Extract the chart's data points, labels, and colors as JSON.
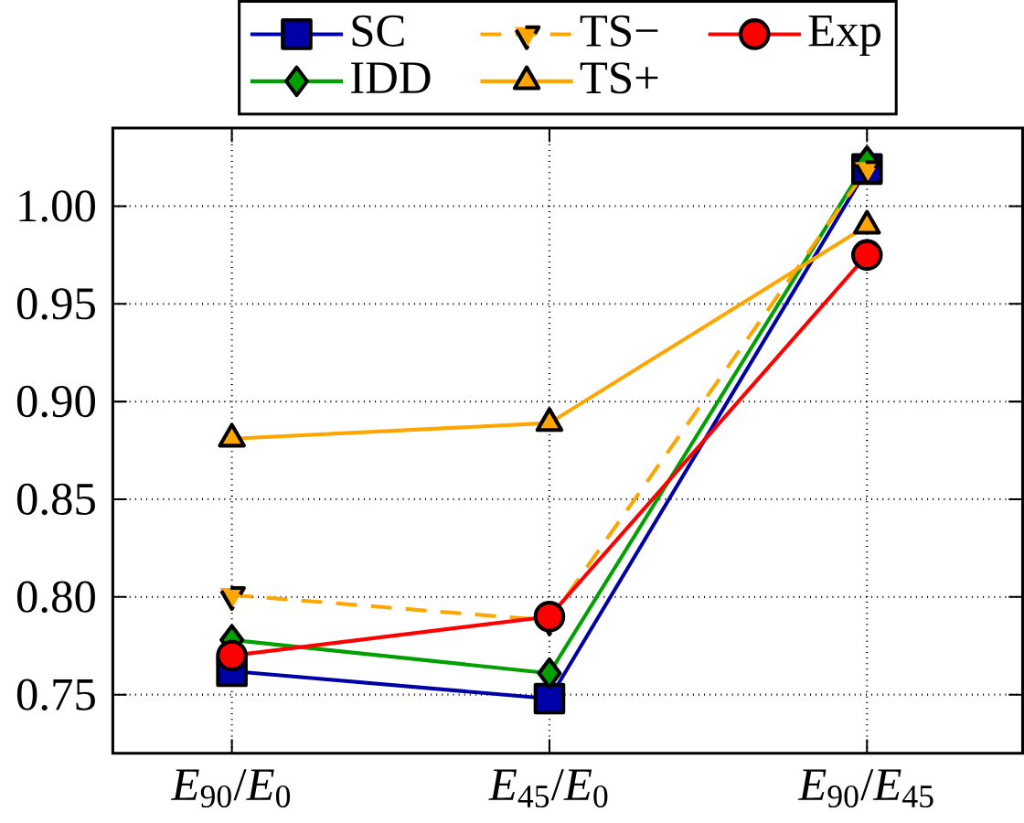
{
  "chart_data": {
    "type": "line",
    "categories": [
      "*E*$_{90}$/*E*$_{0}$",
      "*E*$_{45}$/*E*$_{0}$",
      "*E*$_{90}$/*E*$_{45}$"
    ],
    "series": [
      {
        "name": "SC",
        "color": "#0000a8",
        "marker": "square",
        "values": [
          0.762,
          0.748,
          1.019
        ]
      },
      {
        "name": "IDD",
        "color": "#00a000",
        "marker": "diamond",
        "values": [
          0.778,
          0.761,
          1.023
        ]
      },
      {
        "name": "TS−",
        "color": "#ffa500",
        "marker": "triangle_down",
        "line_style": "dashed",
        "values": [
          0.801,
          0.788,
          1.019
        ]
      },
      {
        "name": "TS+",
        "color": "#ffa500",
        "marker": "triangle",
        "values": [
          0.881,
          0.889,
          0.99
        ]
      },
      {
        "name": "Exp",
        "color": "#ff0000",
        "marker": "circle",
        "values": [
          0.77,
          0.79,
          0.975
        ]
      }
    ],
    "ylim": [
      0.72,
      1.04
    ],
    "yticks": [
      0.75,
      {
        "value": 0.8,
        "label": "0.80"
      },
      0.85,
      {
        "value": 0.9,
        "label": "0.90"
      },
      0.95,
      {
        "value": 1.0,
        "label": "1.00"
      }
    ],
    "grid": true,
    "legend": "top"
  }
}
